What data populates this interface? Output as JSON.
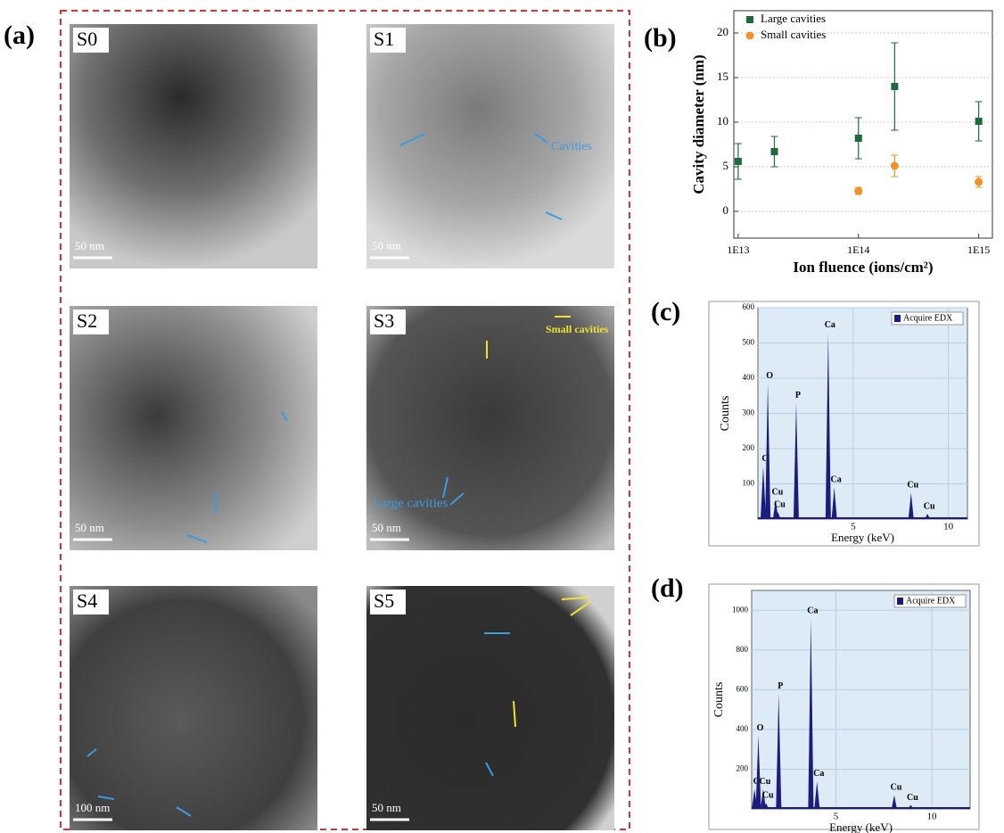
{
  "panel_labels": [
    "(a)",
    "(b)",
    "(c)",
    "(d)"
  ],
  "images": [
    {
      "label": "S0",
      "scale_bar": "50 nm"
    },
    {
      "label": "S1",
      "scale_bar": "50 nm"
    },
    {
      "label": "S2",
      "scale_bar": "50 nm"
    },
    {
      "label": "S3",
      "scale_bar": "50 nm"
    },
    {
      "label": "S4",
      "scale_bar": "100 nm"
    },
    {
      "label": "S5",
      "scale_bar": "50 nm"
    }
  ],
  "annotations": [
    "Cavities",
    "Small cavities",
    "Large cavities"
  ],
  "chart_data": [
    {
      "type": "scatter",
      "xlabel": "Ion fluence (ions/cm²)",
      "ylabel": "Cavity diameter (nm)",
      "xscale": "log",
      "xlim": [
        9200000000000.0,
        1300000000000000.0
      ],
      "ylim": [
        -3,
        22.5
      ],
      "xticks": [
        {
          "value": 10000000000000.0,
          "label": "1E13"
        },
        {
          "value": 100000000000000.0,
          "label": "1E14"
        },
        {
          "value": 1000000000000000.0,
          "label": "1E15"
        }
      ],
      "yticks": [
        0,
        5,
        10,
        15,
        20
      ],
      "grid": true,
      "legend": "upper left",
      "series": [
        {
          "name": "Large cavities",
          "color": "#1f6a3c",
          "marker": "square",
          "x": [
            10000000000000.0,
            20000000000000.0,
            100000000000000.0,
            200000000000000.0,
            1000000000000000.0
          ],
          "values": [
            5.6,
            6.7,
            8.2,
            14,
            10.1
          ],
          "errors": [
            2,
            1.7,
            2.3,
            4.9,
            2.2
          ]
        },
        {
          "name": "Small cavities",
          "color": "#f0922b",
          "marker": "circle",
          "x": [
            100000000000000.0,
            200000000000000.0,
            1000000000000000.0
          ],
          "values": [
            2.3,
            5.1,
            3.3
          ],
          "errors": [
            0.4,
            1.2,
            0.6
          ]
        }
      ]
    },
    {
      "type": "spectrum",
      "xlabel": "Energy (keV)",
      "ylabel": "Counts",
      "xlim": [
        0,
        11
      ],
      "ylim": [
        0,
        600
      ],
      "xticks": [
        5,
        10
      ],
      "yticks": [
        100,
        200,
        300,
        400,
        500,
        600
      ],
      "grid": true,
      "legend": "upper right",
      "series": [
        {
          "name": "Acquire EDX",
          "color": "#1c1c7c",
          "x": [
            0.28,
            0.52,
            0.93,
            1.05,
            2.01,
            3.69,
            4.01,
            8.04,
            8.9
          ],
          "values": [
            150,
            385,
            55,
            20,
            330,
            530,
            90,
            75,
            15
          ]
        }
      ],
      "peak_labels": [
        "C",
        "O",
        "Cu",
        "Cu",
        "P",
        "Ca",
        "Ca",
        "Cu",
        "Cu"
      ]
    },
    {
      "type": "spectrum",
      "xlabel": "Energy (keV)",
      "ylabel": "Counts",
      "xlim": [
        0.6,
        12
      ],
      "ylim": [
        0,
        1100
      ],
      "xticks": [
        5,
        10
      ],
      "yticks": [
        200,
        400,
        600,
        800,
        1000
      ],
      "grid": true,
      "legend": "upper right",
      "series": [
        {
          "name": "Acquire EDX",
          "color": "#1c1c7c",
          "x": [
            0.75,
            0.95,
            1.2,
            1.35,
            2.01,
            3.69,
            4.01,
            8.04,
            8.9
          ],
          "values": [
            100,
            370,
            100,
            30,
            580,
            960,
            140,
            70,
            20
          ]
        }
      ],
      "peak_labels": [
        "C",
        "O",
        "Cu",
        "Cu",
        "P",
        "Ca",
        "Ca",
        "Cu",
        "Cu"
      ]
    }
  ]
}
